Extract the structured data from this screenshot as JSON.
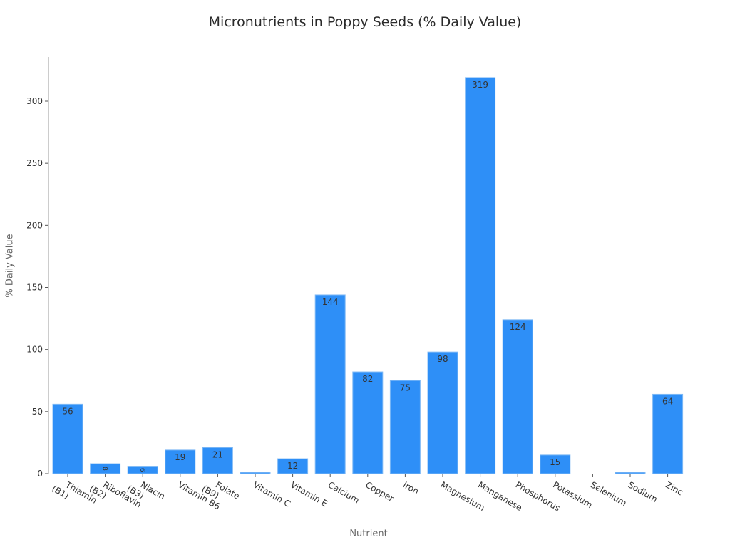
{
  "title": "Micronutrients in Poppy Seeds (% Daily Value)",
  "colors": {
    "bar": "#2e8ff7",
    "bar_edge": "#7fb9f5",
    "axis": "#cccccc",
    "text": "#333333"
  },
  "chart_data": {
    "type": "bar",
    "title": "Micronutrients in Poppy Seeds (% Daily Value)",
    "xlabel": "Nutrient",
    "ylabel": "% Daily Value",
    "categories": [
      "Thiamin (B1)",
      "Riboflavin (B2)",
      "Niacin (B3)",
      "Vitamin B6",
      "Folate (B9)",
      "Vitamin C",
      "Vitamin E",
      "Calcium",
      "Copper",
      "Iron",
      "Magnesium",
      "Manganese",
      "Phosphorus",
      "Potassium",
      "Selenium",
      "Sodium",
      "Zinc"
    ],
    "values": [
      56,
      8,
      6,
      19,
      21,
      1,
      12,
      144,
      82,
      75,
      98,
      319,
      124,
      15,
      0,
      1,
      64
    ],
    "data_labels": [
      "56",
      "8",
      "6",
      "19",
      "21",
      "",
      "12",
      "144",
      "82",
      "75",
      "98",
      "319",
      "124",
      "15",
      "",
      "",
      "64"
    ],
    "yticks": [
      0,
      50,
      100,
      150,
      200,
      250,
      300
    ],
    "ylim": [
      0,
      335
    ],
    "grid": false,
    "legend": null
  }
}
